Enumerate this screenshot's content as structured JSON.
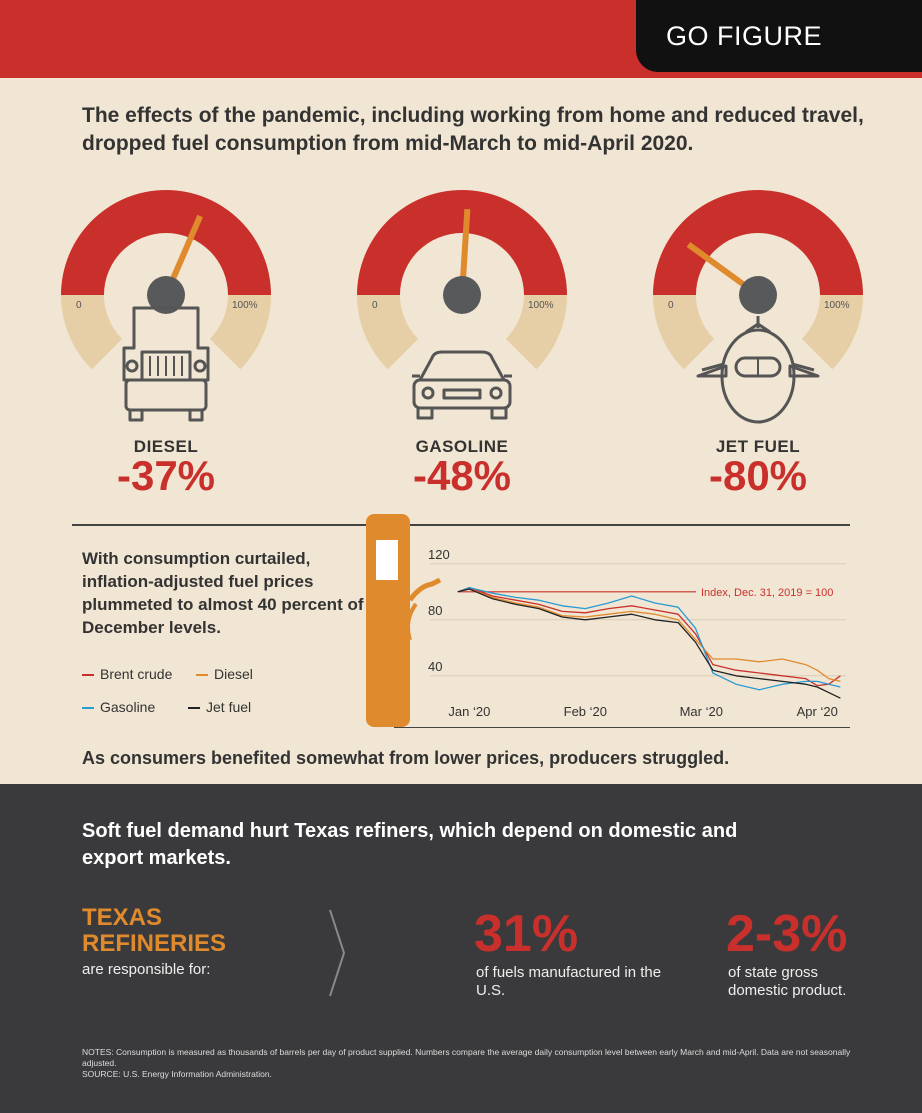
{
  "header": {
    "badge": "GO FIGURE"
  },
  "headline": "The effects of the pandemic, including working from home and reduced travel, dropped fuel consumption from mid-March to mid-April 2020.",
  "gauges": [
    {
      "name": "DIESEL",
      "pct": "-37%",
      "scale_min": "0",
      "scale_max": "100%",
      "level": 0.63,
      "icon": "truck-icon"
    },
    {
      "name": "GASOLINE",
      "pct": "-48%",
      "scale_min": "0",
      "scale_max": "100%",
      "level": 0.52,
      "icon": "car-icon"
    },
    {
      "name": "JET FUEL",
      "pct": "-80%",
      "scale_min": "0",
      "scale_max": "100%",
      "level": 0.2,
      "icon": "airplane-icon"
    }
  ],
  "chart_text": "With consumption curtailed, inflation-adjusted fuel prices plummeted to almost 40 percent of December levels.",
  "chart_data": {
    "type": "line",
    "title": "",
    "xlabel": "",
    "ylabel": "",
    "ylim": [
      22,
      122
    ],
    "yticks": [
      "120",
      "80",
      "40"
    ],
    "ytick_values": [
      120,
      80,
      40
    ],
    "xticks": [
      "Jan ‘20",
      "Feb ‘20",
      "Mar ‘20",
      "Apr ‘20"
    ],
    "xtick_values": [
      0.1,
      1.1,
      2.1,
      3.1
    ],
    "xlim": [
      -0.05,
      3.4
    ],
    "grid": true,
    "reference": {
      "label": "Index, Dec. 31, 2019 = 100",
      "value": 100
    },
    "series": [
      {
        "name": "Brent crude",
        "color": "#c9302c",
        "x": [
          0,
          0.1,
          0.3,
          0.5,
          0.7,
          0.9,
          1.1,
          1.3,
          1.5,
          1.7,
          1.9,
          2.05,
          2.2,
          2.4,
          2.6,
          2.8,
          3.0,
          3.1,
          3.2,
          3.3
        ],
        "y": [
          100,
          103,
          97,
          94,
          91,
          86,
          85,
          88,
          90,
          87,
          84,
          70,
          48,
          44,
          42,
          40,
          38,
          33,
          34,
          40
        ]
      },
      {
        "name": "Diesel",
        "color": "#e08a2e",
        "x": [
          0,
          0.1,
          0.3,
          0.5,
          0.7,
          0.9,
          1.1,
          1.3,
          1.5,
          1.7,
          1.9,
          2.05,
          2.2,
          2.4,
          2.6,
          2.8,
          3.0,
          3.1,
          3.2,
          3.3
        ],
        "y": [
          100,
          102,
          96,
          92,
          89,
          83,
          82,
          84,
          86,
          84,
          80,
          66,
          52,
          52,
          50,
          52,
          48,
          44,
          38,
          36
        ]
      },
      {
        "name": "Gasoline",
        "color": "#2a9ad3",
        "x": [
          0,
          0.1,
          0.3,
          0.5,
          0.7,
          0.9,
          1.1,
          1.3,
          1.5,
          1.7,
          1.9,
          2.05,
          2.2,
          2.4,
          2.6,
          2.8,
          3.0,
          3.1,
          3.2,
          3.3
        ],
        "y": [
          100,
          103,
          99,
          96,
          94,
          90,
          88,
          92,
          97,
          92,
          89,
          74,
          42,
          34,
          30,
          34,
          36,
          36,
          34,
          32
        ]
      },
      {
        "name": "Jet fuel",
        "color": "#222222",
        "x": [
          0,
          0.1,
          0.3,
          0.5,
          0.7,
          0.9,
          1.1,
          1.3,
          1.5,
          1.7,
          1.9,
          2.05,
          2.2,
          2.4,
          2.6,
          2.8,
          3.0,
          3.1,
          3.2,
          3.3
        ],
        "y": [
          100,
          102,
          95,
          91,
          88,
          82,
          80,
          82,
          84,
          80,
          78,
          64,
          44,
          40,
          38,
          36,
          34,
          32,
          28,
          24
        ]
      }
    ]
  },
  "mid_text": "As consumers benefited somewhat from lower prices, producers struggled.",
  "dark": {
    "headline": "Soft fuel demand hurt Texas refiners, which depend on domestic and export markets.",
    "title": "TEXAS REFINERIES",
    "subtitle": "are responsible for:",
    "stats": [
      {
        "value": "31%",
        "label": "of fuels manufactured in the U.S."
      },
      {
        "value": "2-3%",
        "label": "of state gross domestic product."
      }
    ]
  },
  "notes": "NOTES: Consumption is measured as thousands of barrels per day of product supplied. Numbers compare the average daily consumption level between early March and mid-April. Data are not seasonally adjusted.",
  "source": "SOURCE: U.S. Energy Information Administration.",
  "colors": {
    "red": "#c9302c",
    "orange": "#e08a2e",
    "beige": "#e6cfa6",
    "dark": "#3a3a3c",
    "needle": "#e08a2e"
  }
}
